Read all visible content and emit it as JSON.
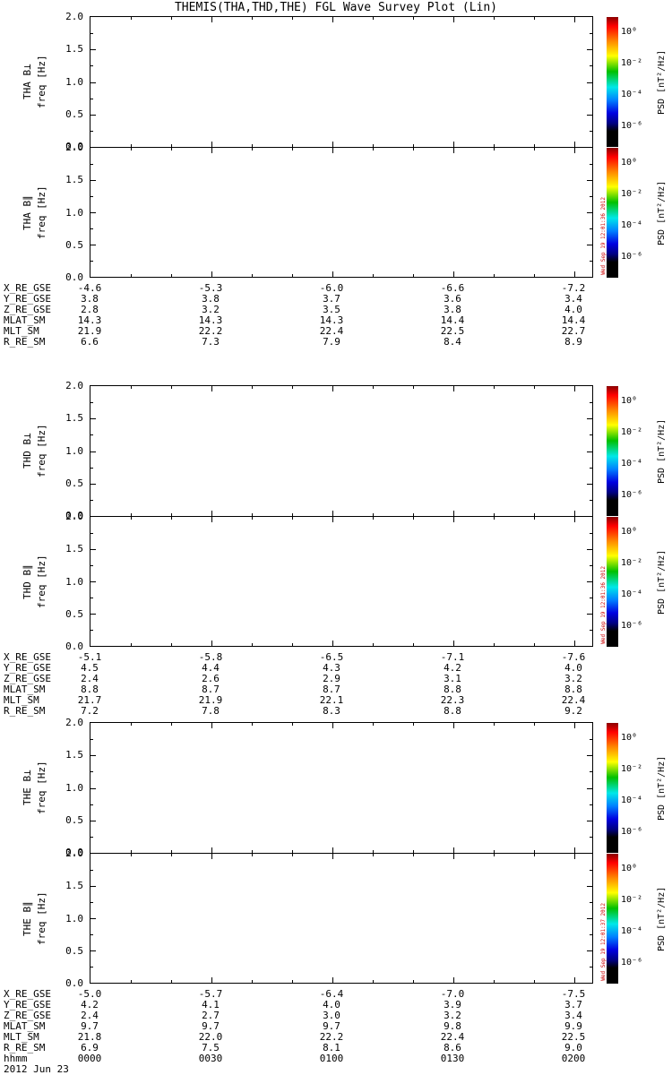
{
  "title": "THEMIS(THA,THD,THE) FGL Wave Survey Plot (Lin)",
  "axes": {
    "yticks": [
      "2.0",
      "1.5",
      "1.0",
      "0.5",
      "0.0"
    ]
  },
  "colorbar": {
    "ticks": [
      "10⁰",
      "10⁻²",
      "10⁻⁴",
      "10⁻⁶"
    ],
    "label": "PSD [nT²/Hz]"
  },
  "groups": [
    {
      "panels": [
        {
          "line1": "THA B⊥",
          "line2": "freq [Hz]"
        },
        {
          "line1": "THA B∥",
          "line2": "freq [Hz]"
        }
      ],
      "stamp": "Wed Sep 19 12:01:36 2012",
      "rows": [
        {
          "label": "X_RE_GSE",
          "values": [
            "-4.6",
            "-5.3",
            "-6.0",
            "-6.6",
            "-7.2"
          ]
        },
        {
          "label": "Y_RE_GSE",
          "values": [
            "3.8",
            "3.8",
            "3.7",
            "3.6",
            "3.4"
          ]
        },
        {
          "label": "Z_RE_GSE",
          "values": [
            "2.8",
            "3.2",
            "3.5",
            "3.8",
            "4.0"
          ]
        },
        {
          "label": "MLAT_SM",
          "values": [
            "14.3",
            "14.3",
            "14.3",
            "14.4",
            "14.4"
          ]
        },
        {
          "label": "MLT_SM",
          "values": [
            "21.9",
            "22.2",
            "22.4",
            "22.5",
            "22.7"
          ]
        },
        {
          "label": "R_RE_SM",
          "values": [
            "6.6",
            "7.3",
            "7.9",
            "8.4",
            "8.9"
          ]
        }
      ]
    },
    {
      "panels": [
        {
          "line1": "THD B⊥",
          "line2": "freq [Hz]"
        },
        {
          "line1": "THD B∥",
          "line2": "freq [Hz]"
        }
      ],
      "stamp": "Wed Sep 19 12:01:36 2012",
      "rows": [
        {
          "label": "X_RE_GSE",
          "values": [
            "-5.1",
            "-5.8",
            "-6.5",
            "-7.1",
            "-7.6"
          ]
        },
        {
          "label": "Y_RE_GSE",
          "values": [
            "4.5",
            "4.4",
            "4.3",
            "4.2",
            "4.0"
          ]
        },
        {
          "label": "Z_RE_GSE",
          "values": [
            "2.4",
            "2.6",
            "2.9",
            "3.1",
            "3.2"
          ]
        },
        {
          "label": "MLAT_SM",
          "values": [
            "8.8",
            "8.7",
            "8.7",
            "8.8",
            "8.8"
          ]
        },
        {
          "label": "MLT_SM",
          "values": [
            "21.7",
            "21.9",
            "22.1",
            "22.3",
            "22.4"
          ]
        },
        {
          "label": "R_RE_SM",
          "values": [
            "7.2",
            "7.8",
            "8.3",
            "8.8",
            "9.2"
          ]
        }
      ]
    },
    {
      "panels": [
        {
          "line1": "THE B⊥",
          "line2": "freq [Hz]"
        },
        {
          "line1": "THE B∥",
          "line2": "freq [Hz]"
        }
      ],
      "stamp": "Wed Sep 19 12:01:37 2012",
      "rows": [
        {
          "label": "X_RE_GSE",
          "values": [
            "-5.0",
            "-5.7",
            "-6.4",
            "-7.0",
            "-7.5"
          ]
        },
        {
          "label": "Y_RE_GSE",
          "values": [
            "4.2",
            "4.1",
            "4.0",
            "3.9",
            "3.7"
          ]
        },
        {
          "label": "Z_RE_GSE",
          "values": [
            "2.4",
            "2.7",
            "3.0",
            "3.2",
            "3.4"
          ]
        },
        {
          "label": "MLAT_SM",
          "values": [
            "9.7",
            "9.7",
            "9.7",
            "9.8",
            "9.9"
          ]
        },
        {
          "label": "MLT_SM",
          "values": [
            "21.8",
            "22.0",
            "22.2",
            "22.4",
            "22.5"
          ]
        },
        {
          "label": "R_RE_SM",
          "values": [
            "6.9",
            "7.5",
            "8.1",
            "8.6",
            "9.0"
          ]
        }
      ]
    }
  ],
  "footer": {
    "hhmm_label": "hhmm",
    "hhmm": [
      "0000",
      "0030",
      "0100",
      "0130",
      "0200"
    ],
    "date": "2012 Jun 23"
  },
  "chart_data": {
    "type": "heatmap",
    "title": "THEMIS(THA,THD,THE) FGL Wave Survey Plot (Lin)",
    "description": "Six wave-power spectrogram panels (THA/THD/THE, B-perp and B-parallel). All panels are blank: no PSD values are rendered above threshold for the shown interval.",
    "time_axis": {
      "label": "hhmm",
      "ticks": [
        "0000",
        "0030",
        "0100",
        "0130",
        "0200"
      ],
      "date": "2012 Jun 23"
    },
    "freq_axis": {
      "label": "freq [Hz]",
      "range": [
        0.0,
        2.0
      ],
      "ticks": [
        0.0,
        0.5,
        1.0,
        1.5,
        2.0
      ]
    },
    "colorbar": {
      "label": "PSD [nT²/Hz]",
      "scale": "log",
      "tick_labels": [
        "10⁰",
        "10⁻²",
        "10⁻⁴",
        "10⁻⁶"
      ],
      "tick_values": [
        1,
        0.01,
        0.0001,
        1e-06
      ]
    },
    "panels": [
      {
        "id": "THA_Bperp",
        "ylabel": "THA B⊥ freq [Hz]",
        "values": []
      },
      {
        "id": "THA_Bpar",
        "ylabel": "THA B∥ freq [Hz]",
        "values": []
      },
      {
        "id": "THD_Bperp",
        "ylabel": "THD B⊥ freq [Hz]",
        "values": []
      },
      {
        "id": "THD_Bpar",
        "ylabel": "THD B∥ freq [Hz]",
        "values": []
      },
      {
        "id": "THE_Bperp",
        "ylabel": "THE B⊥ freq [Hz]",
        "values": []
      },
      {
        "id": "THE_Bpar",
        "ylabel": "THE B∥ freq [Hz]",
        "values": []
      }
    ],
    "ephemeris": {
      "columns_hhmm": [
        "0000",
        "0030",
        "0100",
        "0130",
        "0200"
      ],
      "THA": {
        "X_RE_GSE": [
          -4.6,
          -5.3,
          -6.0,
          -6.6,
          -7.2
        ],
        "Y_RE_GSE": [
          3.8,
          3.8,
          3.7,
          3.6,
          3.4
        ],
        "Z_RE_GSE": [
          2.8,
          3.2,
          3.5,
          3.8,
          4.0
        ],
        "MLAT_SM": [
          14.3,
          14.3,
          14.3,
          14.4,
          14.4
        ],
        "MLT_SM": [
          21.9,
          22.2,
          22.4,
          22.5,
          22.7
        ],
        "R_RE_SM": [
          6.6,
          7.3,
          7.9,
          8.4,
          8.9
        ]
      },
      "THD": {
        "X_RE_GSE": [
          -5.1,
          -5.8,
          -6.5,
          -7.1,
          -7.6
        ],
        "Y_RE_GSE": [
          4.5,
          4.4,
          4.3,
          4.2,
          4.0
        ],
        "Z_RE_GSE": [
          2.4,
          2.6,
          2.9,
          3.1,
          3.2
        ],
        "MLAT_SM": [
          8.8,
          8.7,
          8.7,
          8.8,
          8.8
        ],
        "MLT_SM": [
          21.7,
          21.9,
          22.1,
          22.3,
          22.4
        ],
        "R_RE_SM": [
          7.2,
          7.8,
          8.3,
          8.8,
          9.2
        ]
      },
      "THE": {
        "X_RE_GSE": [
          -5.0,
          -5.7,
          -6.4,
          -7.0,
          -7.5
        ],
        "Y_RE_GSE": [
          4.2,
          4.1,
          4.0,
          3.9,
          3.7
        ],
        "Z_RE_GSE": [
          2.4,
          2.7,
          3.0,
          3.2,
          3.4
        ],
        "MLAT_SM": [
          9.7,
          9.7,
          9.7,
          9.8,
          9.9
        ],
        "MLT_SM": [
          21.8,
          22.0,
          22.2,
          22.4,
          22.5
        ],
        "R_RE_SM": [
          6.9,
          7.5,
          8.1,
          8.6,
          9.0
        ]
      }
    }
  }
}
